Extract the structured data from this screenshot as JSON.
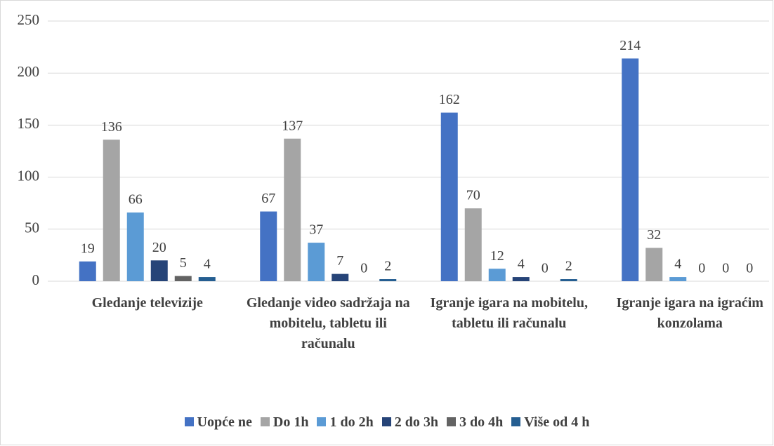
{
  "chart_data": {
    "type": "bar",
    "categories": [
      "Gledanje televizije",
      "Gledanje video sadržaja na mobitelu, tabletu ili računalu",
      "Igranje igara na mobitelu, tabletu ili računalu",
      "Igranje igara na igraćim konzolama"
    ],
    "series": [
      {
        "name": "Uopće ne",
        "color": "#4472c4",
        "values": [
          19,
          67,
          162,
          214
        ]
      },
      {
        "name": "Do 1h",
        "color": "#a5a5a5",
        "values": [
          136,
          137,
          70,
          32
        ]
      },
      {
        "name": "1 do 2h",
        "color": "#5b9bd5",
        "values": [
          66,
          37,
          12,
          4
        ]
      },
      {
        "name": "2 do 3h",
        "color": "#264478",
        "values": [
          20,
          7,
          4,
          0
        ]
      },
      {
        "name": "3 do 4h",
        "color": "#636363",
        "values": [
          5,
          0,
          0,
          0
        ]
      },
      {
        "name": "Više od 4 h",
        "color": "#255e91",
        "values": [
          4,
          2,
          2,
          0
        ]
      }
    ],
    "ylim": [
      0,
      250
    ],
    "yticks": [
      0,
      50,
      100,
      150,
      200,
      250
    ],
    "grid": true,
    "legend": "bottom"
  }
}
